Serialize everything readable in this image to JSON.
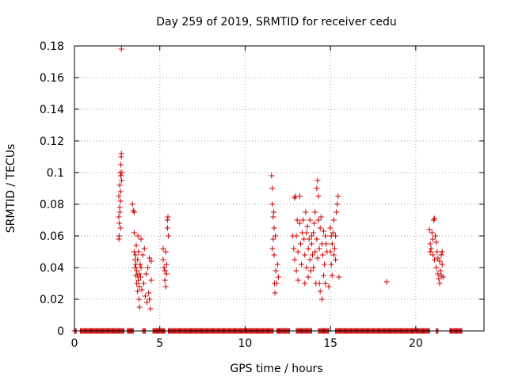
{
  "chart_data": {
    "type": "scatter",
    "title": "Day 259 of 2019, SRMTID for receiver cedu",
    "xlabel": "GPS time / hours",
    "ylabel": "SRMTID / TECUs",
    "xlim": [
      0,
      24
    ],
    "ylim": [
      0,
      0.18
    ],
    "xticks": [
      0,
      5,
      10,
      15,
      20
    ],
    "yticks": [
      0,
      0.02,
      0.04,
      0.06,
      0.08,
      0.1,
      0.12,
      0.14,
      0.16,
      0.18
    ],
    "xtick_labels": [
      "0",
      "5",
      "10",
      "15",
      "20"
    ],
    "ytick_labels": [
      "0",
      "0.02",
      "0.04",
      "0.06",
      "0.08",
      "0.1",
      "0.12",
      "0.14",
      "0.16",
      "0.18"
    ],
    "grid": true,
    "marker": "+",
    "color": "#cc0000",
    "series": [
      {
        "name": "SRMTID",
        "points": [
          [
            2.6,
            0.072
          ],
          [
            2.6,
            0.085
          ],
          [
            2.62,
            0.06
          ],
          [
            2.65,
            0.078
          ],
          [
            2.65,
            0.092
          ],
          [
            2.68,
            0.1
          ],
          [
            2.7,
            0.065
          ],
          [
            2.7,
            0.082
          ],
          [
            2.72,
            0.098
          ],
          [
            2.72,
            0.105
          ],
          [
            2.74,
            0.11
          ],
          [
            2.75,
            0.112
          ],
          [
            2.76,
            0.095
          ],
          [
            2.78,
            0.1
          ],
          [
            2.6,
            0.058
          ],
          [
            2.63,
            0.068
          ],
          [
            2.66,
            0.075
          ],
          [
            2.7,
            0.088
          ],
          [
            2.75,
            0.178
          ],
          [
            3.4,
            0.08
          ],
          [
            3.45,
            0.076
          ],
          [
            3.5,
            0.062
          ],
          [
            3.5,
            0.05
          ],
          [
            3.55,
            0.045
          ],
          [
            3.55,
            0.04
          ],
          [
            3.6,
            0.035
          ],
          [
            3.6,
            0.042
          ],
          [
            3.62,
            0.054
          ],
          [
            3.65,
            0.03
          ],
          [
            3.65,
            0.038
          ],
          [
            3.7,
            0.025
          ],
          [
            3.7,
            0.045
          ],
          [
            3.72,
            0.06
          ],
          [
            3.75,
            0.032
          ],
          [
            3.75,
            0.05
          ],
          [
            3.78,
            0.02
          ],
          [
            3.8,
            0.036
          ],
          [
            3.8,
            0.028
          ],
          [
            3.82,
            0.015
          ],
          [
            3.85,
            0.042
          ],
          [
            3.88,
            0.034
          ],
          [
            3.9,
            0.058
          ],
          [
            3.9,
            0.04
          ],
          [
            3.95,
            0.026
          ],
          [
            4.0,
            0.048
          ],
          [
            4.05,
            0.03
          ],
          [
            4.1,
            0.052
          ],
          [
            4.15,
            0.022
          ],
          [
            4.2,
            0.036
          ],
          [
            4.25,
            0.018
          ],
          [
            4.3,
            0.04
          ],
          [
            4.35,
            0.024
          ],
          [
            4.4,
            0.046
          ],
          [
            4.45,
            0.014
          ],
          [
            4.5,
            0.032
          ],
          [
            4.5,
            0.044
          ],
          [
            4.4,
            0.02
          ],
          [
            3.5,
            0.075
          ],
          [
            3.58,
            0.048
          ],
          [
            3.68,
            0.035
          ],
          [
            5.2,
            0.045
          ],
          [
            5.25,
            0.04
          ],
          [
            5.3,
            0.038
          ],
          [
            5.3,
            0.032
          ],
          [
            5.35,
            0.05
          ],
          [
            5.35,
            0.028
          ],
          [
            5.4,
            0.036
          ],
          [
            5.4,
            0.042
          ],
          [
            5.45,
            0.07
          ],
          [
            5.45,
            0.065
          ],
          [
            5.48,
            0.072
          ],
          [
            5.5,
            0.06
          ],
          [
            5.2,
            0.052
          ],
          [
            11.55,
            0.098
          ],
          [
            11.6,
            0.09
          ],
          [
            11.6,
            0.08
          ],
          [
            11.65,
            0.072
          ],
          [
            11.65,
            0.058
          ],
          [
            11.7,
            0.065
          ],
          [
            11.7,
            0.048
          ],
          [
            11.72,
            0.03
          ],
          [
            11.75,
            0.024
          ],
          [
            11.78,
            0.06
          ],
          [
            11.8,
            0.038
          ],
          [
            11.85,
            0.03
          ],
          [
            11.9,
            0.042
          ],
          [
            11.95,
            0.034
          ],
          [
            11.6,
            0.052
          ],
          [
            11.68,
            0.075
          ],
          [
            12.8,
            0.06
          ],
          [
            12.85,
            0.052
          ],
          [
            12.9,
            0.084
          ],
          [
            12.9,
            0.045
          ],
          [
            12.95,
            0.085
          ],
          [
            13.0,
            0.038
          ],
          [
            13.0,
            0.06
          ],
          [
            13.05,
            0.07
          ],
          [
            13.1,
            0.05
          ],
          [
            13.1,
            0.032
          ],
          [
            13.2,
            0.085
          ],
          [
            13.2,
            0.068
          ],
          [
            13.25,
            0.055
          ],
          [
            13.3,
            0.042
          ],
          [
            13.35,
            0.062
          ],
          [
            13.4,
            0.07
          ],
          [
            13.45,
            0.058
          ],
          [
            13.5,
            0.048
          ],
          [
            13.5,
            0.03
          ],
          [
            13.55,
            0.075
          ],
          [
            13.6,
            0.062
          ],
          [
            13.6,
            0.04
          ],
          [
            13.65,
            0.066
          ],
          [
            13.7,
            0.052
          ],
          [
            13.7,
            0.034
          ],
          [
            13.75,
            0.058
          ],
          [
            13.8,
            0.045
          ],
          [
            13.8,
            0.07
          ],
          [
            13.85,
            0.038
          ],
          [
            13.9,
            0.06
          ],
          [
            13.9,
            0.055
          ],
          [
            13.95,
            0.048
          ],
          [
            14.0,
            0.062
          ],
          [
            14.0,
            0.04
          ],
          [
            14.05,
            0.068
          ],
          [
            14.1,
            0.05
          ],
          [
            14.1,
            0.075
          ],
          [
            14.15,
            0.03
          ],
          [
            14.2,
            0.09
          ],
          [
            14.2,
            0.058
          ],
          [
            14.25,
            0.095
          ],
          [
            14.25,
            0.046
          ],
          [
            14.3,
            0.085
          ],
          [
            14.3,
            0.07
          ],
          [
            14.35,
            0.052
          ],
          [
            14.35,
            0.03
          ],
          [
            14.4,
            0.065
          ],
          [
            14.4,
            0.025
          ],
          [
            14.45,
            0.072
          ],
          [
            14.5,
            0.055
          ],
          [
            14.5,
            0.02
          ],
          [
            14.55,
            0.048
          ],
          [
            14.6,
            0.063
          ],
          [
            14.6,
            0.035
          ],
          [
            14.65,
            0.042
          ],
          [
            14.7,
            0.06
          ],
          [
            14.7,
            0.03
          ],
          [
            14.75,
            0.055
          ],
          [
            14.8,
            0.05
          ],
          [
            14.9,
            0.028
          ],
          [
            15.0,
            0.065
          ],
          [
            15.0,
            0.05
          ],
          [
            15.05,
            0.06
          ],
          [
            15.05,
            0.042
          ],
          [
            15.1,
            0.055
          ],
          [
            15.1,
            0.035
          ],
          [
            15.15,
            0.062
          ],
          [
            15.2,
            0.048
          ],
          [
            15.2,
            0.07
          ],
          [
            15.25,
            0.052
          ],
          [
            15.3,
            0.045
          ],
          [
            15.35,
            0.075
          ],
          [
            15.4,
            0.08
          ],
          [
            15.45,
            0.085
          ],
          [
            15.5,
            0.034
          ],
          [
            15.3,
            0.06
          ],
          [
            18.3,
            0.031
          ],
          [
            20.8,
            0.064
          ],
          [
            20.85,
            0.055
          ],
          [
            20.85,
            0.05
          ],
          [
            20.9,
            0.052
          ],
          [
            20.95,
            0.062
          ],
          [
            21.0,
            0.058
          ],
          [
            21.0,
            0.048
          ],
          [
            21.05,
            0.07
          ],
          [
            21.1,
            0.071
          ],
          [
            21.1,
            0.045
          ],
          [
            21.15,
            0.06
          ],
          [
            21.2,
            0.056
          ],
          [
            21.2,
            0.04
          ],
          [
            21.25,
            0.05
          ],
          [
            21.3,
            0.036
          ],
          [
            21.3,
            0.046
          ],
          [
            21.35,
            0.033
          ],
          [
            21.4,
            0.044
          ],
          [
            21.4,
            0.03
          ],
          [
            21.45,
            0.038
          ],
          [
            21.5,
            0.048
          ],
          [
            21.5,
            0.035
          ],
          [
            21.55,
            0.042
          ],
          [
            21.55,
            0.05
          ],
          [
            21.6,
            0.034
          ]
        ],
        "zero_baseline_ranges": [
          [
            0.0,
            0.1
          ],
          [
            0.35,
            2.9
          ],
          [
            3.1,
            3.45
          ],
          [
            4.0,
            4.15
          ],
          [
            4.6,
            5.3
          ],
          [
            5.5,
            11.65
          ],
          [
            11.85,
            12.6
          ],
          [
            13.0,
            13.9
          ],
          [
            14.3,
            14.9
          ],
          [
            15.3,
            20.8
          ],
          [
            21.2,
            21.3
          ],
          [
            22.0,
            22.7
          ]
        ]
      }
    ]
  }
}
